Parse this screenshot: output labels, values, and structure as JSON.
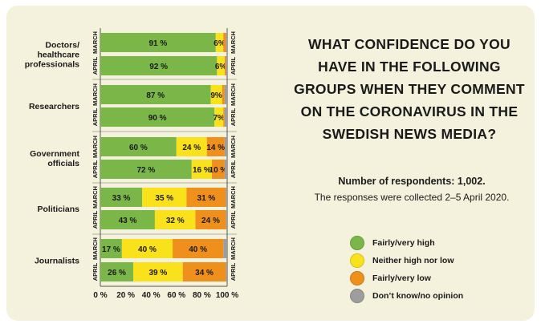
{
  "title": "WHAT CONFIDENCE DO YOU HAVE IN THE FOLLOWING GROUPS WHEN THEY COMMENT ON THE CORONAVIRUS IN THE SWEDISH NEWS MEDIA?",
  "respondents": "Number of respondents: 1,002.",
  "collected": "The responses were collected 2–5 April 2020.",
  "colors": {
    "background": "#f4f2dc",
    "fairly_very_high": "#7ab648",
    "neither": "#f9e21b",
    "fairly_very_low": "#ef8f1c",
    "dont_know": "#9d9d9d"
  },
  "legend": [
    {
      "label": "Fairly/very high",
      "color": "#7ab648"
    },
    {
      "label": "Neither high nor low",
      "color": "#f9e21b"
    },
    {
      "label": "Fairly/very low",
      "color": "#ef8f1c"
    },
    {
      "label": "Don’t know/no opinion",
      "color": "#9d9d9d"
    }
  ],
  "chart_data": {
    "type": "bar",
    "orientation": "horizontal",
    "stacked": true,
    "xlim": [
      0,
      100
    ],
    "xticks": [
      "0 %",
      "20 %",
      "40 %",
      "60 %",
      "80 %",
      "100 %"
    ],
    "groups": [
      "Doctors/\nhealthcare\nprofessionals",
      "Researchers",
      "Government\nofficials",
      "Politicians",
      "Journalists"
    ],
    "periods": [
      "MARCH",
      "APRIL"
    ],
    "series": [
      {
        "name": "Fairly/very high",
        "values": [
          [
            91,
            92
          ],
          [
            87,
            90
          ],
          [
            60,
            72
          ],
          [
            33,
            43
          ],
          [
            17,
            26
          ]
        ]
      },
      {
        "name": "Neither high nor low",
        "values": [
          [
            6,
            6
          ],
          [
            9,
            7
          ],
          [
            24,
            16
          ],
          [
            35,
            32
          ],
          [
            40,
            39
          ]
        ]
      },
      {
        "name": "Fairly/very low",
        "values": [
          [
            2,
            1
          ],
          [
            2,
            1
          ],
          [
            14,
            10
          ],
          [
            31,
            24
          ],
          [
            40,
            34
          ]
        ]
      },
      {
        "name": "Don’t know/no opinion",
        "values": [
          [
            1,
            1
          ],
          [
            2,
            2
          ],
          [
            2,
            2
          ],
          [
            1,
            1
          ],
          [
            3,
            1
          ]
        ]
      }
    ],
    "data_labels": [
      [
        [
          "91 %",
          "6%",
          "",
          ""
        ],
        [
          "92 %",
          "6%",
          "",
          ""
        ]
      ],
      [
        [
          "87 %",
          "9%",
          "",
          ""
        ],
        [
          "90 %",
          "7%",
          "",
          ""
        ]
      ],
      [
        [
          "60 %",
          "24 %",
          "14 %",
          ""
        ],
        [
          "72 %",
          "16 %",
          "10 %",
          ""
        ]
      ],
      [
        [
          "33 %",
          "35 %",
          "31 %",
          ""
        ],
        [
          "43 %",
          "32 %",
          "24 %",
          ""
        ]
      ],
      [
        [
          "17 %",
          "40 %",
          "40 %",
          ""
        ],
        [
          "26 %",
          "39 %",
          "34 %",
          ""
        ]
      ]
    ]
  }
}
